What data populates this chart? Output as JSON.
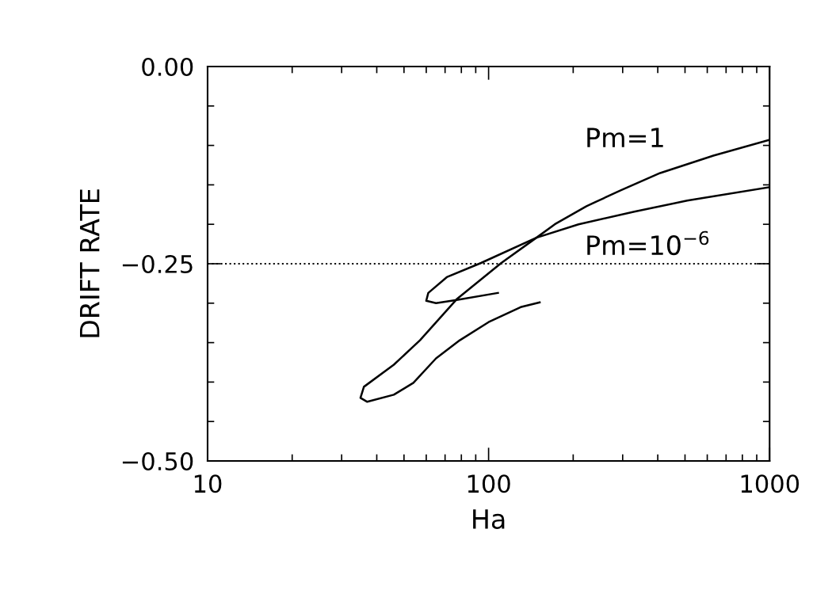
{
  "chart_data": {
    "type": "line",
    "xlabel": "Ha",
    "ylabel": "DRIFT RATE",
    "log": "x",
    "xlim": [
      10,
      1000
    ],
    "xticks": [
      10,
      100,
      1000
    ],
    "ylim": [
      -0.5,
      0.0
    ],
    "yticks": [
      {
        "value": 0.0,
        "label": "0.00"
      },
      {
        "value": -0.25,
        "label": "−0.25"
      },
      {
        "value": -0.5,
        "label": "−0.50"
      }
    ],
    "grid": false,
    "legend": false,
    "marker": "none",
    "line_style": "solid",
    "series": [
      {
        "name": "Pm=1",
        "color": "#000000",
        "x": [
          1000,
          631,
          408,
          295,
          223,
          172,
          148,
          111,
          77,
          57,
          46,
          36,
          35,
          37,
          46,
          54,
          65,
          79,
          100,
          130,
          152
        ],
        "values": [
          -0.093,
          -0.113,
          -0.135,
          -0.157,
          -0.177,
          -0.2,
          -0.217,
          -0.249,
          -0.295,
          -0.347,
          -0.378,
          -0.406,
          -0.42,
          -0.425,
          -0.416,
          -0.401,
          -0.37,
          -0.347,
          -0.324,
          -0.305,
          -0.299
        ]
      },
      {
        "name": "Pm=10$^{−6}$",
        "color": "#000000",
        "x": [
          1000,
          509,
          330,
          209,
          148,
          94,
          71,
          61,
          60,
          65,
          77,
          108
        ],
        "values": [
          -0.153,
          -0.17,
          -0.184,
          -0.2,
          -0.217,
          -0.249,
          -0.267,
          -0.287,
          -0.297,
          -0.3,
          -0.296,
          -0.287
        ]
      }
    ],
    "ref_lines": [
      {
        "axis": "y",
        "value": -0.25,
        "color": "#000000",
        "line_style": "dotted"
      }
    ]
  }
}
